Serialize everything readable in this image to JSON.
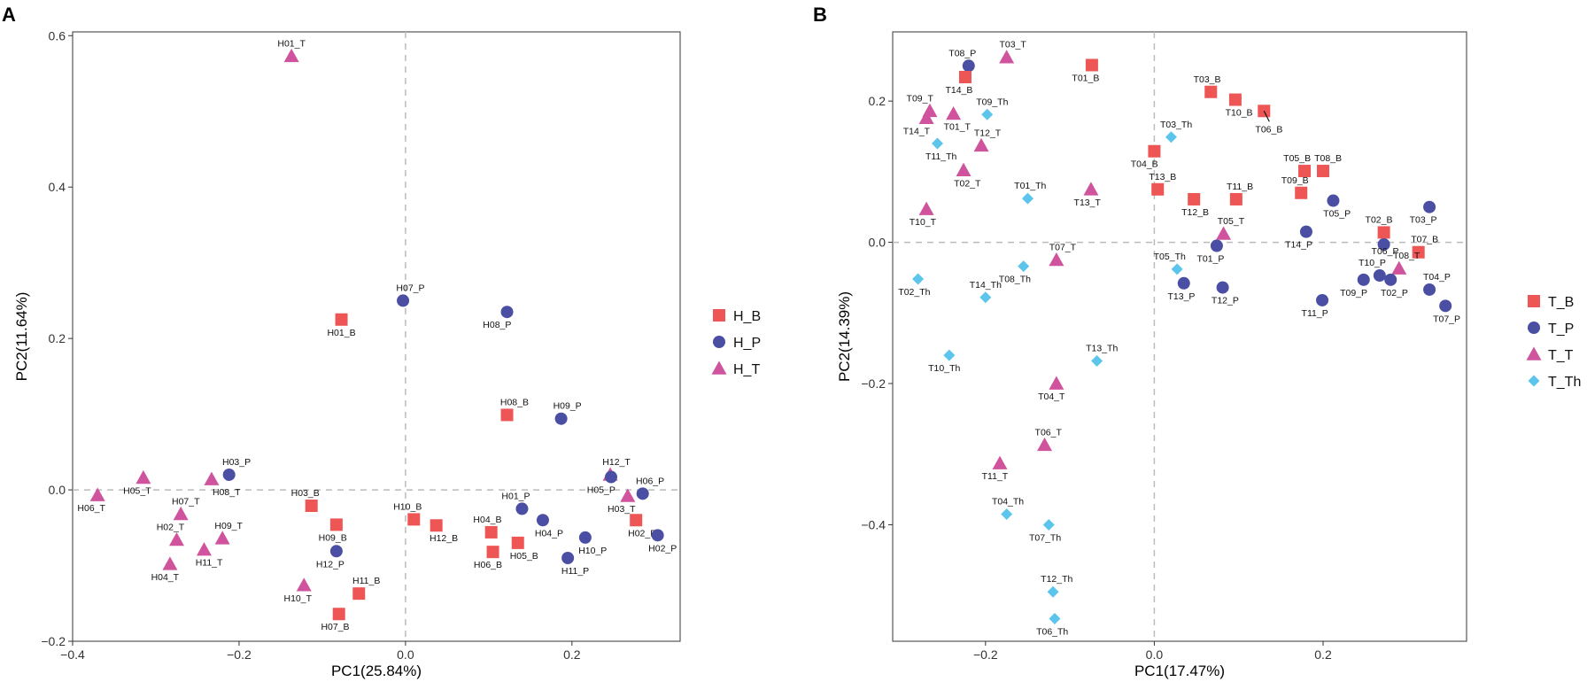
{
  "colors": {
    "bronchus": "#EE5555",
    "plasma": "#4A4FA3",
    "throat": "#D0549D",
    "thymus": "#5CC5EB",
    "ref_line": "#BBBBBB",
    "axis": "#333333"
  },
  "chart_data": [
    {
      "type": "scatter",
      "panel_label": "A",
      "xlabel": "PC1(25.84%)",
      "ylabel": "PC2(11.64%)",
      "xlim": [
        -0.4,
        0.33
      ],
      "ylim": [
        -0.2,
        0.605
      ],
      "xticks": [
        -0.4,
        -0.2,
        0.0,
        0.2
      ],
      "xtick_labels": [
        "−0.4",
        "−0.2",
        "0.0",
        "0.2"
      ],
      "yticks": [
        -0.2,
        0.0,
        0.2,
        0.4,
        0.6
      ],
      "ytick_labels": [
        "−0.2",
        "0.0",
        "0.2",
        "0.4",
        "0.6"
      ],
      "legend": [
        "H_B",
        "H_P",
        "H_T"
      ],
      "legend_shapes": [
        "square",
        "circle",
        "triangle"
      ],
      "legend_colors": [
        "bronchus",
        "plasma",
        "throat"
      ],
      "points": [
        {
          "label": "H01_T",
          "group": "H_T",
          "x": -0.137,
          "y": 0.573,
          "lx": 0,
          "ly": 1
        },
        {
          "label": "H07_P",
          "group": "H_P",
          "x": -0.003,
          "y": 0.25,
          "lx": 0.6,
          "ly": 1
        },
        {
          "label": "H01_B",
          "group": "H_B",
          "x": -0.077,
          "y": 0.225,
          "lx": 0,
          "ly": -1
        },
        {
          "label": "H08_P",
          "group": "H_P",
          "x": 0.122,
          "y": 0.235,
          "lx": -0.8,
          "ly": -1
        },
        {
          "label": "H08_B",
          "group": "H_B",
          "x": 0.122,
          "y": 0.099,
          "lx": 0.6,
          "ly": 1
        },
        {
          "label": "H09_P",
          "group": "H_P",
          "x": 0.187,
          "y": 0.094,
          "lx": 0.5,
          "ly": 1
        },
        {
          "label": "H03_P",
          "group": "H_P",
          "x": -0.212,
          "y": 0.02,
          "lx": 0.6,
          "ly": 1
        },
        {
          "label": "H08_T",
          "group": "H_T",
          "x": -0.233,
          "y": 0.014,
          "lx": 1.2,
          "ly": -1
        },
        {
          "label": "H05_T",
          "group": "H_T",
          "x": -0.315,
          "y": 0.016,
          "lx": -0.5,
          "ly": -1
        },
        {
          "label": "H06_T",
          "group": "H_T",
          "x": -0.37,
          "y": -0.007,
          "lx": -0.5,
          "ly": -1
        },
        {
          "label": "H12_T",
          "group": "H_T",
          "x": 0.246,
          "y": 0.02,
          "lx": 0.5,
          "ly": 1
        },
        {
          "label": "H05_P",
          "group": "H_P",
          "x": 0.247,
          "y": 0.017,
          "lx": -0.8,
          "ly": -1
        },
        {
          "label": "H06_P",
          "group": "H_P",
          "x": 0.285,
          "y": -0.005,
          "lx": 0.6,
          "ly": 1
        },
        {
          "label": "H03_T",
          "group": "H_T",
          "x": 0.267,
          "y": -0.008,
          "lx": -0.5,
          "ly": -1
        },
        {
          "label": "H03_B",
          "group": "H_B",
          "x": -0.113,
          "y": -0.021,
          "lx": -0.5,
          "ly": 1
        },
        {
          "label": "H07_T",
          "group": "H_T",
          "x": -0.27,
          "y": -0.032,
          "lx": 0.4,
          "ly": 1
        },
        {
          "label": "H01_P",
          "group": "H_P",
          "x": 0.14,
          "y": -0.025,
          "lx": -0.5,
          "ly": 1
        },
        {
          "label": "H10_B",
          "group": "H_B",
          "x": 0.01,
          "y": -0.039,
          "lx": -0.5,
          "ly": 1
        },
        {
          "label": "H12_B",
          "group": "H_B",
          "x": 0.037,
          "y": -0.047,
          "lx": 0.6,
          "ly": -1
        },
        {
          "label": "H09_B",
          "group": "H_B",
          "x": -0.083,
          "y": -0.046,
          "lx": -0.3,
          "ly": -1
        },
        {
          "label": "H09_T",
          "group": "H_T",
          "x": -0.22,
          "y": -0.064,
          "lx": 0.5,
          "ly": 1
        },
        {
          "label": "H02_T",
          "group": "H_T",
          "x": -0.275,
          "y": -0.066,
          "lx": -0.5,
          "ly": 1
        },
        {
          "label": "H04_P",
          "group": "H_P",
          "x": 0.165,
          "y": -0.04,
          "lx": 0.5,
          "ly": -1
        },
        {
          "label": "H04_B",
          "group": "H_B",
          "x": 0.103,
          "y": -0.056,
          "lx": -0.3,
          "ly": 1
        },
        {
          "label": "H05_B",
          "group": "H_B",
          "x": 0.135,
          "y": -0.07,
          "lx": 0.5,
          "ly": -1
        },
        {
          "label": "H02_B",
          "group": "H_B",
          "x": 0.277,
          "y": -0.04,
          "lx": 0.5,
          "ly": -1
        },
        {
          "label": "H02_P",
          "group": "H_P",
          "x": 0.303,
          "y": -0.06,
          "lx": 0.4,
          "ly": -1
        },
        {
          "label": "H10_P",
          "group": "H_P",
          "x": 0.216,
          "y": -0.063,
          "lx": 0.6,
          "ly": -1
        },
        {
          "label": "H06_B",
          "group": "H_B",
          "x": 0.105,
          "y": -0.082,
          "lx": -0.4,
          "ly": -1
        },
        {
          "label": "H11_P",
          "group": "H_P",
          "x": 0.195,
          "y": -0.09,
          "lx": 0.6,
          "ly": -1
        },
        {
          "label": "H12_P",
          "group": "H_P",
          "x": -0.083,
          "y": -0.081,
          "lx": -0.5,
          "ly": -1
        },
        {
          "label": "H11_T",
          "group": "H_T",
          "x": -0.242,
          "y": -0.079,
          "lx": 0.4,
          "ly": -1
        },
        {
          "label": "H04_T",
          "group": "H_T",
          "x": -0.283,
          "y": -0.098,
          "lx": -0.4,
          "ly": -1
        },
        {
          "label": "H11_B",
          "group": "H_B",
          "x": -0.056,
          "y": -0.137,
          "lx": 0.6,
          "ly": 1
        },
        {
          "label": "H10_T",
          "group": "H_T",
          "x": -0.122,
          "y": -0.126,
          "lx": -0.5,
          "ly": -1
        },
        {
          "label": "H07_B",
          "group": "H_B",
          "x": -0.08,
          "y": -0.164,
          "lx": -0.3,
          "ly": -1
        }
      ]
    },
    {
      "type": "scatter",
      "panel_label": "B",
      "xlabel": "PC1(17.47%)",
      "ylabel": "PC2(14.39%)",
      "xlim": [
        -0.31,
        0.37
      ],
      "ylim": [
        -0.565,
        0.298
      ],
      "xticks": [
        -0.2,
        0.0,
        0.2
      ],
      "xtick_labels": [
        "−0.2",
        "0.0",
        "0.2"
      ],
      "yticks": [
        -0.4,
        -0.2,
        0.0,
        0.2
      ],
      "ytick_labels": [
        "−0.4",
        "−0.2",
        "0.0",
        "0.2"
      ],
      "legend": [
        "T_B",
        "T_P",
        "T_T",
        "T_Th"
      ],
      "legend_shapes": [
        "square",
        "circle",
        "triangle",
        "diamond"
      ],
      "legend_colors": [
        "bronchus",
        "plasma",
        "throat",
        "thymus"
      ],
      "points": [
        {
          "label": "T08_P",
          "group": "T_P",
          "x": -0.22,
          "y": 0.25,
          "lx": -0.5,
          "ly": 1
        },
        {
          "label": "T03_T",
          "group": "T_T",
          "x": -0.175,
          "y": 0.262,
          "lx": 0.5,
          "ly": 1
        },
        {
          "label": "T14_B",
          "group": "T_B",
          "x": -0.224,
          "y": 0.234,
          "lx": -0.5,
          "ly": -1
        },
        {
          "label": "T01_B",
          "group": "T_B",
          "x": -0.074,
          "y": 0.251,
          "lx": -0.5,
          "ly": -1
        },
        {
          "label": "T09_T",
          "group": "T_T",
          "x": -0.266,
          "y": 0.186,
          "lx": -0.8,
          "ly": 1
        },
        {
          "label": "T09_Th",
          "group": "T_Th",
          "x": -0.198,
          "y": 0.181,
          "lx": 0.4,
          "ly": 1
        },
        {
          "label": "T01_T",
          "group": "T_T",
          "x": -0.238,
          "y": 0.182,
          "lx": 0.3,
          "ly": -1
        },
        {
          "label": "T14_T",
          "group": "T_T",
          "x": -0.27,
          "y": 0.176,
          "lx": -0.8,
          "ly": -1
        },
        {
          "label": "T03_B",
          "group": "T_B",
          "x": 0.067,
          "y": 0.213,
          "lx": -0.3,
          "ly": 1
        },
        {
          "label": "T10_B",
          "group": "T_B",
          "x": 0.096,
          "y": 0.202,
          "lx": 0.3,
          "ly": -1
        },
        {
          "label": "T06_B",
          "group": "T_B",
          "x": 0.13,
          "y": 0.186,
          "lx": 0.4,
          "ly": -1.8
        },
        {
          "label": "T03_Th",
          "group": "T_Th",
          "x": 0.02,
          "y": 0.149,
          "lx": 0.4,
          "ly": 1
        },
        {
          "label": "T11_Th",
          "group": "T_Th",
          "x": -0.257,
          "y": 0.14,
          "lx": 0.3,
          "ly": -1
        },
        {
          "label": "T12_T",
          "group": "T_T",
          "x": -0.205,
          "y": 0.137,
          "lx": 0.5,
          "ly": 1
        },
        {
          "label": "T02_T",
          "group": "T_T",
          "x": -0.226,
          "y": 0.102,
          "lx": 0.3,
          "ly": -1
        },
        {
          "label": "T04_B",
          "group": "T_B",
          "x": 0.0,
          "y": 0.129,
          "lx": -0.8,
          "ly": -1
        },
        {
          "label": "T05_B",
          "group": "T_B",
          "x": 0.178,
          "y": 0.101,
          "lx": -0.6,
          "ly": 1
        },
        {
          "label": "T08_B",
          "group": "T_B",
          "x": 0.2,
          "y": 0.101,
          "lx": 0.4,
          "ly": 1
        },
        {
          "label": "T13_B",
          "group": "T_B",
          "x": 0.004,
          "y": 0.075,
          "lx": 0.4,
          "ly": 1
        },
        {
          "label": "T13_T",
          "group": "T_T",
          "x": -0.075,
          "y": 0.075,
          "lx": -0.3,
          "ly": -1
        },
        {
          "label": "T11_B",
          "group": "T_B",
          "x": 0.097,
          "y": 0.061,
          "lx": 0.3,
          "ly": 1
        },
        {
          "label": "T12_B",
          "group": "T_B",
          "x": 0.047,
          "y": 0.061,
          "lx": 0.1,
          "ly": -1
        },
        {
          "label": "T09_B",
          "group": "T_B",
          "x": 0.174,
          "y": 0.07,
          "lx": -0.5,
          "ly": 1
        },
        {
          "label": "T01_Th",
          "group": "T_Th",
          "x": -0.15,
          "y": 0.062,
          "lx": 0.2,
          "ly": 1
        },
        {
          "label": "T05_P",
          "group": "T_P",
          "x": 0.212,
          "y": 0.059,
          "lx": 0.3,
          "ly": -1
        },
        {
          "label": "T03_P",
          "group": "T_P",
          "x": 0.326,
          "y": 0.05,
          "lx": -0.5,
          "ly": -1
        },
        {
          "label": "T10_T",
          "group": "T_T",
          "x": -0.27,
          "y": 0.047,
          "lx": -0.3,
          "ly": -1
        },
        {
          "label": "T02_B",
          "group": "T_B",
          "x": 0.272,
          "y": 0.014,
          "lx": -0.4,
          "ly": 1
        },
        {
          "label": "T05_T",
          "group": "T_T",
          "x": 0.082,
          "y": 0.012,
          "lx": 0.6,
          "ly": 1
        },
        {
          "label": "T14_P",
          "group": "T_P",
          "x": 0.18,
          "y": 0.015,
          "lx": -0.6,
          "ly": -1
        },
        {
          "label": "T06_P",
          "group": "T_P",
          "x": 0.272,
          "y": -0.003,
          "lx": 0.1,
          "ly": -0.1
        },
        {
          "label": "T07_B",
          "group": "T_B",
          "x": 0.313,
          "y": -0.014,
          "lx": 0.5,
          "ly": 1
        },
        {
          "label": "T01_P",
          "group": "T_P",
          "x": 0.074,
          "y": -0.005,
          "lx": -0.5,
          "ly": -1
        },
        {
          "label": "T07_T",
          "group": "T_T",
          "x": -0.116,
          "y": -0.025,
          "lx": 0.5,
          "ly": 1
        },
        {
          "label": "T08_T",
          "group": "T_T",
          "x": 0.29,
          "y": -0.037,
          "lx": 0.6,
          "ly": 1
        },
        {
          "label": "T10_P",
          "group": "T_P",
          "x": 0.267,
          "y": -0.047,
          "lx": -0.6,
          "ly": 1
        },
        {
          "label": "T09_P",
          "group": "T_P",
          "x": 0.248,
          "y": -0.053,
          "lx": -0.8,
          "ly": -1
        },
        {
          "label": "T02_P",
          "group": "T_P",
          "x": 0.28,
          "y": -0.053,
          "lx": 0.3,
          "ly": -1
        },
        {
          "label": "T05_Th",
          "group": "T_Th",
          "x": 0.027,
          "y": -0.038,
          "lx": -0.6,
          "ly": 1
        },
        {
          "label": "T13_P",
          "group": "T_P",
          "x": 0.035,
          "y": -0.058,
          "lx": -0.2,
          "ly": -1
        },
        {
          "label": "T12_P",
          "group": "T_P",
          "x": 0.081,
          "y": -0.064,
          "lx": 0.2,
          "ly": -1
        },
        {
          "label": "T04_P",
          "group": "T_P",
          "x": 0.326,
          "y": -0.067,
          "lx": 0.6,
          "ly": 1
        },
        {
          "label": "T07_P",
          "group": "T_P",
          "x": 0.345,
          "y": -0.09,
          "lx": 0.1,
          "ly": -1
        },
        {
          "label": "T11_P",
          "group": "T_P",
          "x": 0.199,
          "y": -0.082,
          "lx": -0.6,
          "ly": -1
        },
        {
          "label": "T08_Th",
          "group": "T_Th",
          "x": -0.155,
          "y": -0.034,
          "lx": -0.7,
          "ly": -1
        },
        {
          "label": "T14_Th",
          "group": "T_Th",
          "x": -0.2,
          "y": -0.078,
          "lx": 0,
          "ly": 1
        },
        {
          "label": "T02_Th",
          "group": "T_Th",
          "x": -0.28,
          "y": -0.052,
          "lx": -0.3,
          "ly": -1
        },
        {
          "label": "T10_Th",
          "group": "T_Th",
          "x": -0.243,
          "y": -0.16,
          "lx": -0.4,
          "ly": -1
        },
        {
          "label": "T13_Th",
          "group": "T_Th",
          "x": -0.068,
          "y": -0.168,
          "lx": 0.4,
          "ly": 1
        },
        {
          "label": "T04_T",
          "group": "T_T",
          "x": -0.116,
          "y": -0.2,
          "lx": -0.4,
          "ly": -1
        },
        {
          "label": "T06_T",
          "group": "T_T",
          "x": -0.13,
          "y": -0.287,
          "lx": 0.3,
          "ly": 1
        },
        {
          "label": "T11_T",
          "group": "T_T",
          "x": -0.183,
          "y": -0.313,
          "lx": -0.4,
          "ly": -1
        },
        {
          "label": "T04_Th",
          "group": "T_Th",
          "x": -0.175,
          "y": -0.385,
          "lx": 0.1,
          "ly": 1
        },
        {
          "label": "T07_Th",
          "group": "T_Th",
          "x": -0.125,
          "y": -0.4,
          "lx": -0.3,
          "ly": -1
        },
        {
          "label": "T12_Th",
          "group": "T_Th",
          "x": -0.12,
          "y": -0.495,
          "lx": 0.3,
          "ly": 1
        },
        {
          "label": "T06_Th",
          "group": "T_Th",
          "x": -0.118,
          "y": -0.533,
          "lx": -0.2,
          "ly": -1
        }
      ]
    }
  ]
}
